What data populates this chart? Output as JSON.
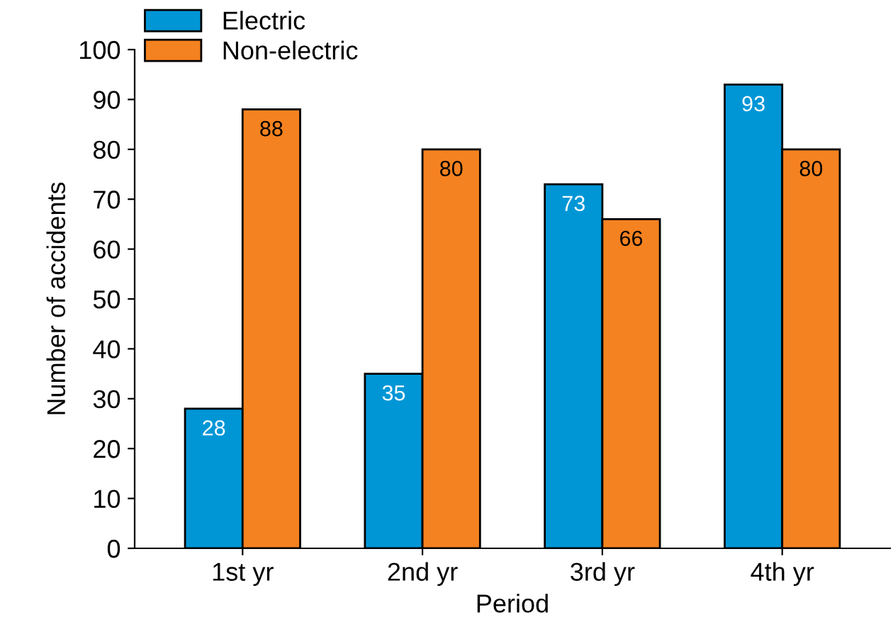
{
  "chart_data": {
    "type": "bar",
    "xlabel": "Period",
    "ylabel": "Number of accidents",
    "categories": [
      "1st yr",
      "2nd yr",
      "3rd yr",
      "4th yr"
    ],
    "series": [
      {
        "name": "Electric",
        "color": "#0096d6",
        "values": [
          28,
          35,
          73,
          93
        ]
      },
      {
        "name": "Non-electric",
        "color": "#f58220",
        "values": [
          88,
          80,
          66,
          80
        ]
      }
    ],
    "ylim": [
      0,
      100
    ],
    "yticks": [
      0,
      10,
      20,
      30,
      40,
      50,
      60,
      70,
      80,
      90,
      100
    ],
    "data_labels": true,
    "legend": "top left",
    "grid": false
  }
}
